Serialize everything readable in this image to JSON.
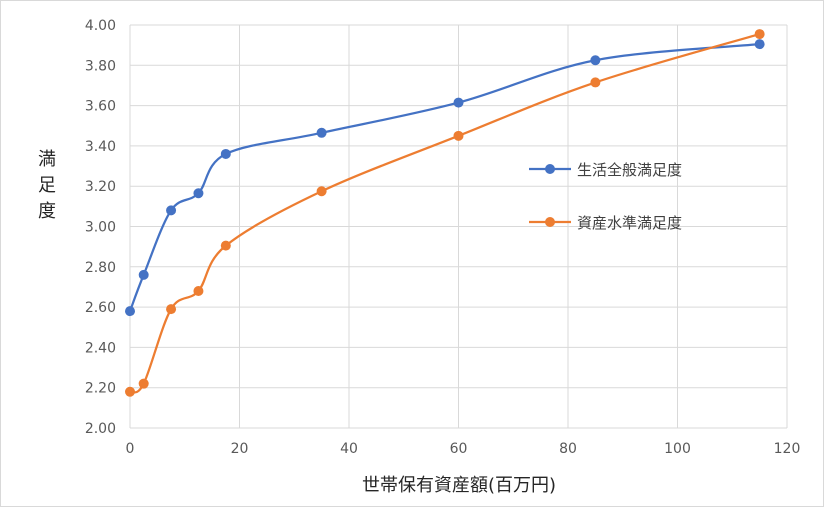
{
  "chart_data": {
    "type": "line",
    "title": "",
    "xlabel": "世帯保有資産額(百万円)",
    "ylabel": "満足度",
    "xlim": [
      0,
      120
    ],
    "ylim": [
      2.0,
      4.0
    ],
    "x_ticks": [
      0,
      20,
      40,
      60,
      80,
      100,
      120
    ],
    "y_ticks": [
      "2.00",
      "2.20",
      "2.40",
      "2.60",
      "2.80",
      "3.00",
      "3.20",
      "3.40",
      "3.60",
      "3.80",
      "4.00"
    ],
    "grid": true,
    "legend_position": "right",
    "series": [
      {
        "name": "生活全般満足度",
        "color": "#4472c4",
        "points": [
          [
            0,
            2.58
          ],
          [
            2.5,
            2.76
          ],
          [
            7.5,
            3.08
          ],
          [
            12.5,
            3.165
          ],
          [
            17.5,
            3.36
          ],
          [
            35,
            3.465
          ],
          [
            60,
            3.615
          ],
          [
            85,
            3.825
          ],
          [
            115,
            3.905
          ]
        ]
      },
      {
        "name": "資産水準満足度",
        "color": "#ed7d31",
        "points": [
          [
            0,
            2.18
          ],
          [
            2.5,
            2.22
          ],
          [
            7.5,
            2.59
          ],
          [
            12.5,
            2.68
          ],
          [
            17.5,
            2.905
          ],
          [
            35,
            3.175
          ],
          [
            60,
            3.45
          ],
          [
            85,
            3.715
          ],
          [
            115,
            3.955
          ]
        ]
      }
    ]
  }
}
